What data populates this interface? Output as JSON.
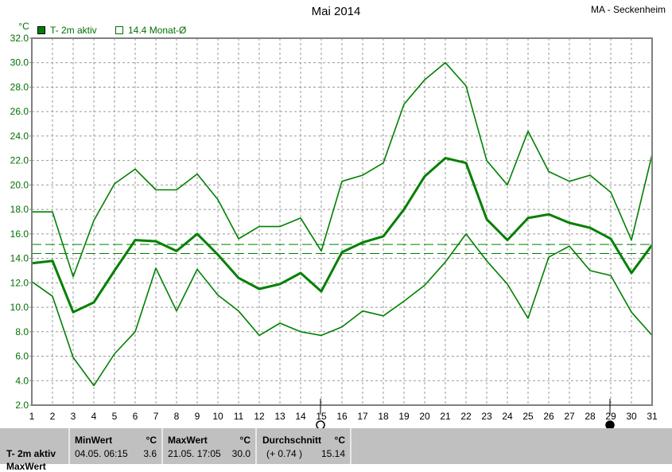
{
  "header": {
    "title": "Mai 2014",
    "station": "MA - Seckenheim"
  },
  "legend": [
    {
      "label": "T- 2m aktiv",
      "color": "#008000",
      "filled": true
    },
    {
      "label": "14.4 Monat-Ø",
      "color": "#008000",
      "filled": false
    }
  ],
  "chart_data": {
    "type": "line",
    "title": "Mai 2014",
    "ylabel": "°C",
    "ylim": [
      2.0,
      32.0
    ],
    "yticks": [
      "2.0",
      "4.0",
      "6.0",
      "8.0",
      "10.0",
      "12.0",
      "14.0",
      "16.0",
      "18.0",
      "20.0",
      "22.0",
      "24.0",
      "26.0",
      "28.0",
      "30.0",
      "32.0"
    ],
    "x": [
      1,
      2,
      3,
      4,
      5,
      6,
      7,
      8,
      9,
      10,
      11,
      12,
      13,
      14,
      15,
      16,
      17,
      18,
      19,
      20,
      21,
      22,
      23,
      24,
      25,
      26,
      27,
      28,
      29,
      30,
      31
    ],
    "grid": true,
    "series": [
      {
        "role": "max",
        "values": [
          17.8,
          17.8,
          12.5,
          17.1,
          20.1,
          21.3,
          19.6,
          19.6,
          20.9,
          18.8,
          15.6,
          16.6,
          16.6,
          17.3,
          14.6,
          20.3,
          20.8,
          21.8,
          26.6,
          28.6,
          30.0,
          28.1,
          22.0,
          20.0,
          24.4,
          21.1,
          20.3,
          20.8,
          19.4,
          15.5,
          22.5
        ]
      },
      {
        "role": "mean",
        "name": "T- 2m aktiv",
        "values": [
          13.6,
          13.8,
          9.6,
          10.4,
          13.0,
          15.5,
          15.4,
          14.6,
          16.0,
          14.3,
          12.4,
          11.5,
          11.9,
          12.8,
          11.3,
          14.5,
          15.3,
          15.8,
          18.0,
          20.7,
          22.2,
          21.8,
          17.2,
          15.5,
          17.3,
          17.6,
          16.9,
          16.5,
          15.6,
          12.8,
          15.1
        ]
      },
      {
        "role": "min",
        "values": [
          12.1,
          10.9,
          5.9,
          3.6,
          6.2,
          8.0,
          13.2,
          9.7,
          13.1,
          11.0,
          9.7,
          7.7,
          8.7,
          8.0,
          7.7,
          8.4,
          9.7,
          9.3,
          10.5,
          11.8,
          13.7,
          16.0,
          13.8,
          11.9,
          9.1,
          14.1,
          15.0,
          13.0,
          12.6,
          9.6,
          7.7
        ]
      }
    ],
    "reference_lines": [
      {
        "name": "14.4 Monat-Ø",
        "value": 14.4
      },
      {
        "name": "Durchschnitt",
        "value": 15.14
      }
    ],
    "moon_phases": [
      {
        "day": 15,
        "phase": "full-moon"
      },
      {
        "day": 29,
        "phase": "new-moon"
      }
    ],
    "color": "#008000"
  },
  "stats": {
    "row_label": "T- 2m aktiv",
    "row_label_2": "MaxWert",
    "min": {
      "label": "MinWert",
      "unit": "°C",
      "when": "04.05.  06:15",
      "value": "3.6"
    },
    "max": {
      "label": "MaxWert",
      "unit": "°C",
      "when": "21.05.  17:05",
      "value": "30.0"
    },
    "avg": {
      "label": "Durchschnitt",
      "unit": "°C",
      "when": "(+ 0.74 )",
      "value": "15.14"
    }
  }
}
